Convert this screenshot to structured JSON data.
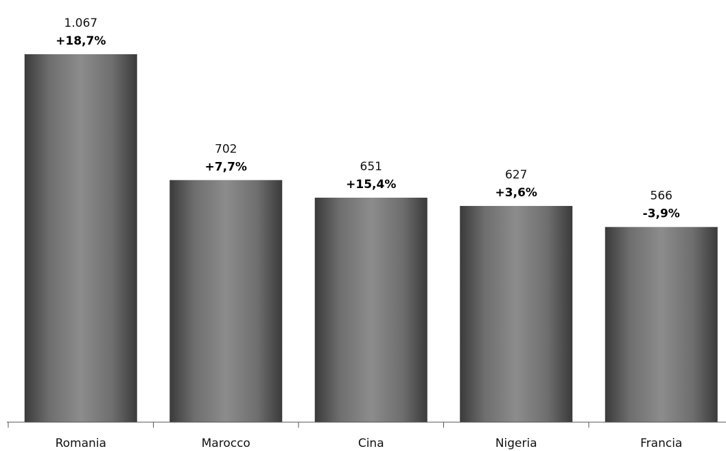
{
  "chart_data": {
    "type": "bar",
    "categories": [
      "Romania",
      "Marocco",
      "Cina",
      "Nigeria",
      "Francia"
    ],
    "values": [
      1067,
      702,
      651,
      627,
      566
    ],
    "value_labels": [
      "1.067",
      "702",
      "651",
      "627",
      "566"
    ],
    "change_labels": [
      "+18,7%",
      "+7,7%",
      "+15,4%",
      "+3,6%",
      "-3,9%"
    ],
    "title": "",
    "xlabel": "",
    "ylabel": "",
    "ylim": [
      0,
      1067
    ],
    "grid": false,
    "legend": "none",
    "colors": {
      "bar_edge": "#3a3a3a",
      "bar_center": "#8c8c8c",
      "axis": "#555555"
    }
  }
}
